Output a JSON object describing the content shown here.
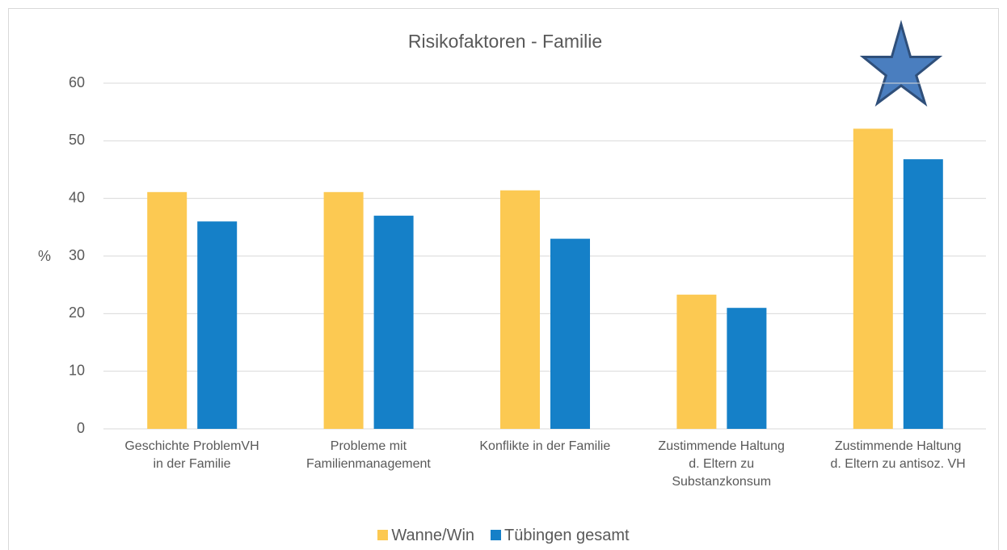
{
  "chart_data": {
    "type": "bar",
    "title": "Risikofaktoren - Familie",
    "y_label": "%",
    "categories": [
      "Geschichte ProblemVH\nin der Familie",
      "Probleme mit\nFamilienmanagement",
      "Konflikte in der Familie",
      "Zustimmende Haltung\nd. Eltern zu\nSubstanzkonsum",
      "Zustimmende Haltung\nd. Eltern zu antisoz. VH"
    ],
    "series": [
      {
        "name": "Wanne/Win",
        "color": "#fcc952",
        "values": [
          41.1,
          41.1,
          41.4,
          23.3,
          52.1
        ]
      },
      {
        "name": "Tübingen gesamt",
        "color": "#1580c8",
        "values": [
          36,
          37,
          33,
          21,
          46.8
        ]
      }
    ],
    "ylim": [
      0,
      60
    ],
    "yticks": [
      0,
      10,
      20,
      30,
      40,
      50,
      60
    ],
    "grid": true,
    "legend": "bottom"
  }
}
